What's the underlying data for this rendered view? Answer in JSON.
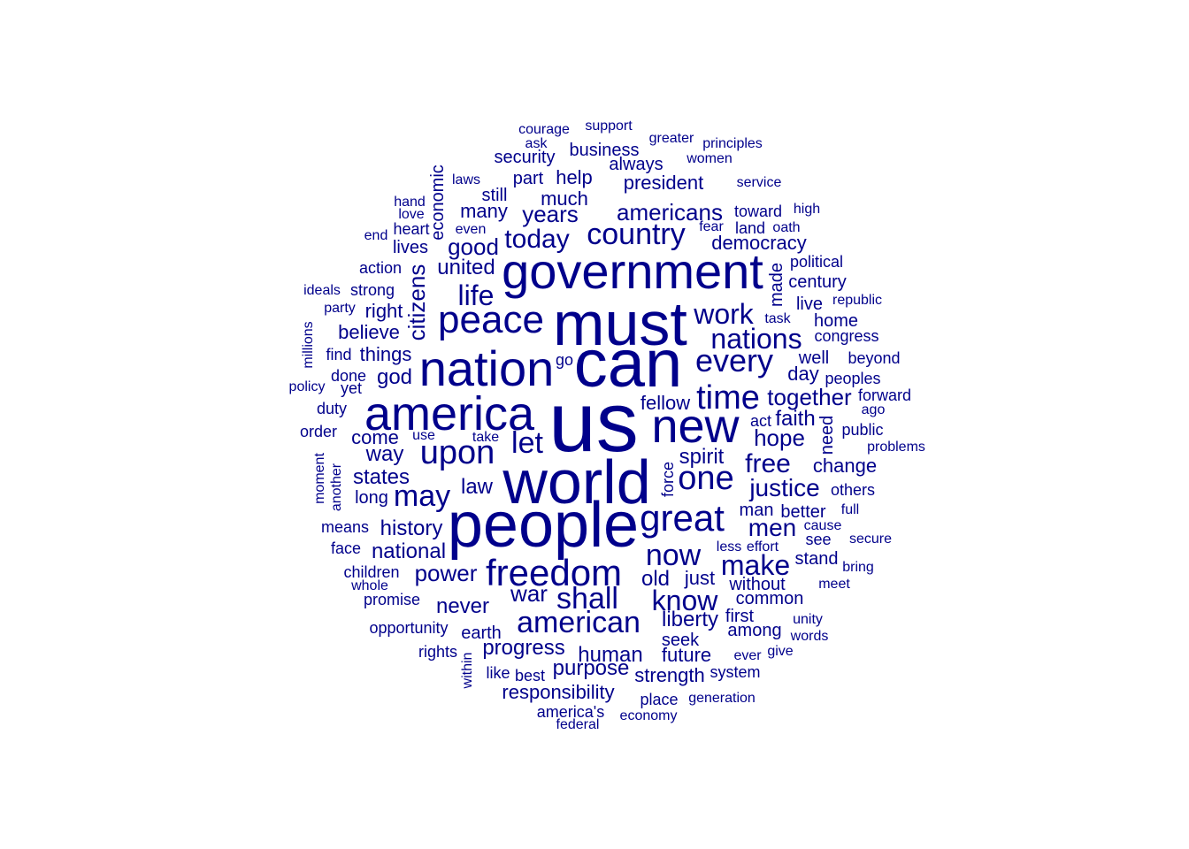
{
  "cloud": {
    "color": "#00008b",
    "words": [
      {
        "text": "us",
        "weight": 1.0
      },
      {
        "text": "can",
        "weight": 0.86
      },
      {
        "text": "must",
        "weight": 0.84
      },
      {
        "text": "world",
        "weight": 0.83
      },
      {
        "text": "people",
        "weight": 0.82
      },
      {
        "text": "government",
        "weight": 0.7
      },
      {
        "text": "nation",
        "weight": 0.68
      },
      {
        "text": "america",
        "weight": 0.66
      },
      {
        "text": "new",
        "weight": 0.64
      },
      {
        "text": "peace",
        "weight": 0.58
      },
      {
        "text": "freedom",
        "weight": 0.55
      },
      {
        "text": "time",
        "weight": 0.52
      },
      {
        "text": "upon",
        "weight": 0.5
      },
      {
        "text": "one",
        "weight": 0.5
      },
      {
        "text": "great",
        "weight": 0.5
      },
      {
        "text": "every",
        "weight": 0.48
      },
      {
        "text": "american",
        "weight": 0.45
      },
      {
        "text": "shall",
        "weight": 0.45
      },
      {
        "text": "now",
        "weight": 0.45
      },
      {
        "text": "country",
        "weight": 0.45
      },
      {
        "text": "may",
        "weight": 0.44
      },
      {
        "text": "nations",
        "weight": 0.43
      },
      {
        "text": "let",
        "weight": 0.43
      },
      {
        "text": "know",
        "weight": 0.42
      },
      {
        "text": "make",
        "weight": 0.42
      },
      {
        "text": "work",
        "weight": 0.4
      },
      {
        "text": "life",
        "weight": 0.4
      },
      {
        "text": "today",
        "weight": 0.4
      },
      {
        "text": "justice",
        "weight": 0.38
      },
      {
        "text": "free",
        "weight": 0.38
      },
      {
        "text": "men",
        "weight": 0.36
      },
      {
        "text": "americans",
        "weight": 0.35
      },
      {
        "text": "years",
        "weight": 0.35
      },
      {
        "text": "hope",
        "weight": 0.35
      },
      {
        "text": "together",
        "weight": 0.34
      },
      {
        "text": "war",
        "weight": 0.34
      },
      {
        "text": "power",
        "weight": 0.34
      },
      {
        "text": "citizens",
        "weight": 0.33
      },
      {
        "text": "liberty",
        "weight": 0.32
      },
      {
        "text": "good",
        "weight": 0.32
      },
      {
        "text": "united",
        "weight": 0.32
      },
      {
        "text": "states",
        "weight": 0.32
      },
      {
        "text": "national",
        "weight": 0.31
      },
      {
        "text": "history",
        "weight": 0.31
      },
      {
        "text": "progress",
        "weight": 0.31
      },
      {
        "text": "human",
        "weight": 0.31
      },
      {
        "text": "purpose",
        "weight": 0.31
      },
      {
        "text": "never",
        "weight": 0.3
      },
      {
        "text": "god",
        "weight": 0.3
      },
      {
        "text": "law",
        "weight": 0.3
      },
      {
        "text": "spirit",
        "weight": 0.3
      },
      {
        "text": "faith",
        "weight": 0.3
      },
      {
        "text": "old",
        "weight": 0.3
      },
      {
        "text": "way",
        "weight": 0.3
      },
      {
        "text": "much",
        "weight": 0.28
      },
      {
        "text": "many",
        "weight": 0.28
      },
      {
        "text": "democracy",
        "weight": 0.28
      },
      {
        "text": "president",
        "weight": 0.28
      },
      {
        "text": "fellow",
        "weight": 0.28
      },
      {
        "text": "come",
        "weight": 0.28
      },
      {
        "text": "things",
        "weight": 0.28
      },
      {
        "text": "believe",
        "weight": 0.28
      },
      {
        "text": "right",
        "weight": 0.28
      },
      {
        "text": "help",
        "weight": 0.28
      },
      {
        "text": "day",
        "weight": 0.28
      },
      {
        "text": "just",
        "weight": 0.28
      },
      {
        "text": "change",
        "weight": 0.28
      },
      {
        "text": "future",
        "weight": 0.28
      },
      {
        "text": "strength",
        "weight": 0.28
      },
      {
        "text": "responsibility",
        "weight": 0.28
      },
      {
        "text": "common",
        "weight": 0.27
      },
      {
        "text": "without",
        "weight": 0.27
      },
      {
        "text": "among",
        "weight": 0.27
      },
      {
        "text": "first",
        "weight": 0.27
      },
      {
        "text": "seek",
        "weight": 0.27
      },
      {
        "text": "earth",
        "weight": 0.27
      },
      {
        "text": "long",
        "weight": 0.27
      },
      {
        "text": "made",
        "weight": 0.27
      },
      {
        "text": "economic",
        "weight": 0.26
      },
      {
        "text": "business",
        "weight": 0.26
      },
      {
        "text": "security",
        "weight": 0.26
      },
      {
        "text": "always",
        "weight": 0.26
      },
      {
        "text": "part",
        "weight": 0.26
      },
      {
        "text": "still",
        "weight": 0.26
      },
      {
        "text": "lives",
        "weight": 0.26
      },
      {
        "text": "action",
        "weight": 0.26
      },
      {
        "text": "strong",
        "weight": 0.26
      },
      {
        "text": "stand",
        "weight": 0.26
      },
      {
        "text": "better",
        "weight": 0.26
      },
      {
        "text": "man",
        "weight": 0.26
      },
      {
        "text": "opportunity",
        "weight": 0.26
      },
      {
        "text": "children",
        "weight": 0.26
      },
      {
        "text": "century",
        "weight": 0.26
      },
      {
        "text": "home",
        "weight": 0.26
      },
      {
        "text": "congress",
        "weight": 0.26
      },
      {
        "text": "well",
        "weight": 0.26
      },
      {
        "text": "political",
        "weight": 0.26
      },
      {
        "text": "live",
        "weight": 0.26
      },
      {
        "text": "need",
        "weight": 0.25
      },
      {
        "text": "force",
        "weight": 0.24
      },
      {
        "text": "courage",
        "weight": 0.24
      },
      {
        "text": "support",
        "weight": 0.24
      },
      {
        "text": "ask",
        "weight": 0.24
      },
      {
        "text": "greater",
        "weight": 0.24
      },
      {
        "text": "principles",
        "weight": 0.24
      },
      {
        "text": "women",
        "weight": 0.24
      },
      {
        "text": "service",
        "weight": 0.24
      },
      {
        "text": "laws",
        "weight": 0.24
      },
      {
        "text": "hand",
        "weight": 0.24
      },
      {
        "text": "love",
        "weight": 0.24
      },
      {
        "text": "heart",
        "weight": 0.24
      },
      {
        "text": "end",
        "weight": 0.24
      },
      {
        "text": "even",
        "weight": 0.24
      },
      {
        "text": "toward",
        "weight": 0.24
      },
      {
        "text": "high",
        "weight": 0.24
      },
      {
        "text": "fear",
        "weight": 0.24
      },
      {
        "text": "land",
        "weight": 0.24
      },
      {
        "text": "oath",
        "weight": 0.24
      },
      {
        "text": "ideals",
        "weight": 0.24
      },
      {
        "text": "party",
        "weight": 0.24
      },
      {
        "text": "republic",
        "weight": 0.24
      },
      {
        "text": "task",
        "weight": 0.24
      },
      {
        "text": "millions",
        "weight": 0.24
      },
      {
        "text": "find",
        "weight": 0.24
      },
      {
        "text": "done",
        "weight": 0.24
      },
      {
        "text": "go",
        "weight": 0.24
      },
      {
        "text": "beyond",
        "weight": 0.24
      },
      {
        "text": "policy",
        "weight": 0.24
      },
      {
        "text": "yet",
        "weight": 0.24
      },
      {
        "text": "peoples",
        "weight": 0.24
      },
      {
        "text": "forward",
        "weight": 0.24
      },
      {
        "text": "duty",
        "weight": 0.24
      },
      {
        "text": "ago",
        "weight": 0.24
      },
      {
        "text": "act",
        "weight": 0.24
      },
      {
        "text": "order",
        "weight": 0.24
      },
      {
        "text": "use",
        "weight": 0.24
      },
      {
        "text": "take",
        "weight": 0.24
      },
      {
        "text": "public",
        "weight": 0.24
      },
      {
        "text": "problems",
        "weight": 0.24
      },
      {
        "text": "moment",
        "weight": 0.24
      },
      {
        "text": "another",
        "weight": 0.24
      },
      {
        "text": "others",
        "weight": 0.24
      },
      {
        "text": "full",
        "weight": 0.24
      },
      {
        "text": "means",
        "weight": 0.24
      },
      {
        "text": "cause",
        "weight": 0.24
      },
      {
        "text": "see",
        "weight": 0.24
      },
      {
        "text": "secure",
        "weight": 0.24
      },
      {
        "text": "face",
        "weight": 0.24
      },
      {
        "text": "less",
        "weight": 0.24
      },
      {
        "text": "effort",
        "weight": 0.24
      },
      {
        "text": "bring",
        "weight": 0.24
      },
      {
        "text": "whole",
        "weight": 0.24
      },
      {
        "text": "meet",
        "weight": 0.24
      },
      {
        "text": "promise",
        "weight": 0.24
      },
      {
        "text": "unity",
        "weight": 0.24
      },
      {
        "text": "words",
        "weight": 0.24
      },
      {
        "text": "rights",
        "weight": 0.24
      },
      {
        "text": "within",
        "weight": 0.24
      },
      {
        "text": "ever",
        "weight": 0.24
      },
      {
        "text": "give",
        "weight": 0.24
      },
      {
        "text": "like",
        "weight": 0.24
      },
      {
        "text": "best",
        "weight": 0.24
      },
      {
        "text": "system",
        "weight": 0.24
      },
      {
        "text": "place",
        "weight": 0.24
      },
      {
        "text": "generation",
        "weight": 0.24
      },
      {
        "text": "america's",
        "weight": 0.24
      },
      {
        "text": "economy",
        "weight": 0.24
      },
      {
        "text": "federal",
        "weight": 0.24
      }
    ]
  }
}
